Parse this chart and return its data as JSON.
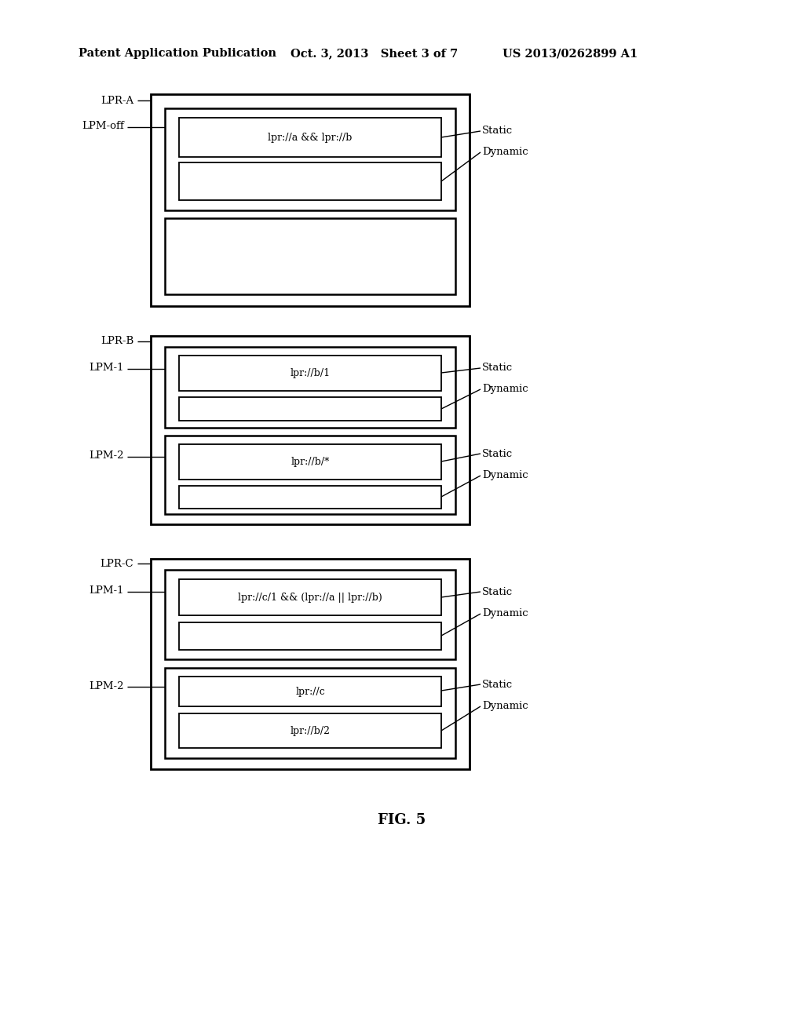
{
  "title": "FIG. 5",
  "header_left": "Patent Application Publication",
  "header_center": "Oct. 3, 2013   Sheet 3 of 7",
  "header_right": "US 2013/0262899 A1",
  "background_color": "#ffffff",
  "fig_w": 10.24,
  "fig_h": 13.2,
  "dpi": 100
}
